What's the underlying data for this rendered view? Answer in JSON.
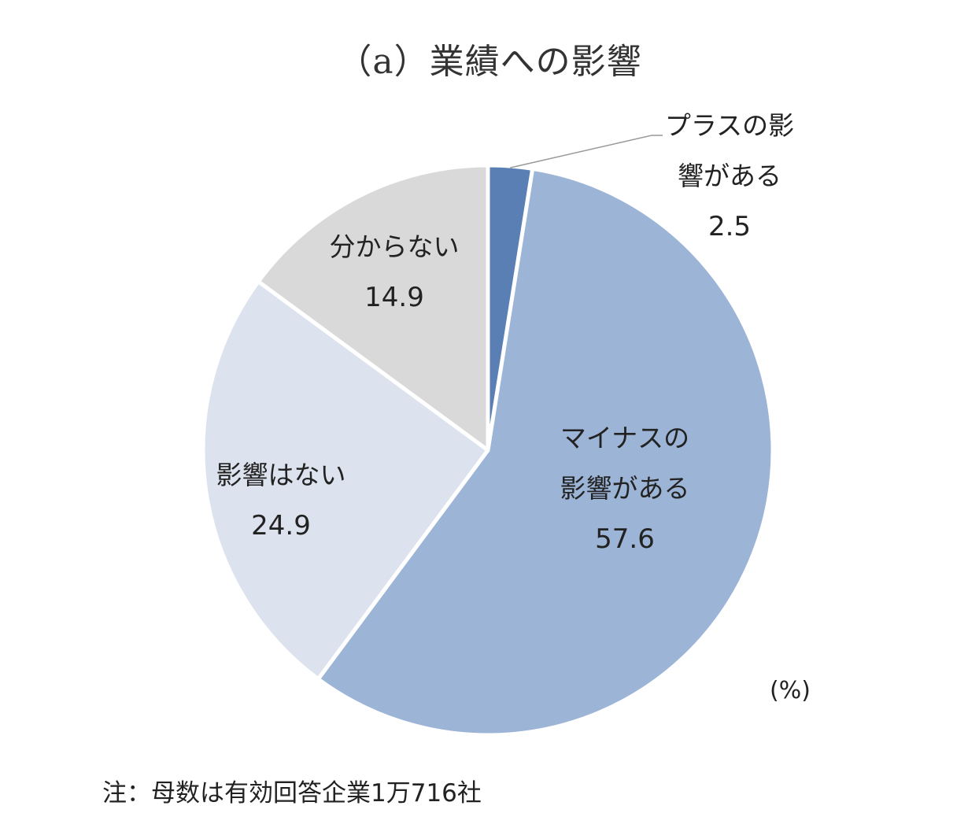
{
  "chart_data": {
    "type": "pie",
    "title": "（a）業績への影響",
    "unit": "(%)",
    "slices": [
      {
        "label": "プラスの影響がある",
        "label_lines": [
          "プラスの影",
          "響がある"
        ],
        "value": 2.5,
        "value_text": "2.5",
        "color": "#5a7fb5"
      },
      {
        "label": "マイナスの影響がある",
        "label_lines": [
          "マイナスの",
          "影響がある"
        ],
        "value": 57.6,
        "value_text": "57.6",
        "color": "#9cb4d6"
      },
      {
        "label": "影響はない",
        "label_lines": [
          "影響はない"
        ],
        "value": 24.9,
        "value_text": "24.9",
        "color": "#dde3ee"
      },
      {
        "label": "分からない",
        "label_lines": [
          "分からない"
        ],
        "value": 14.9,
        "value_text": "14.9",
        "color": "#d9d9d9"
      }
    ],
    "start_angle": "12 o'clock",
    "direction": "clockwise",
    "note": "注：母数は有効回答企業1万716社"
  }
}
